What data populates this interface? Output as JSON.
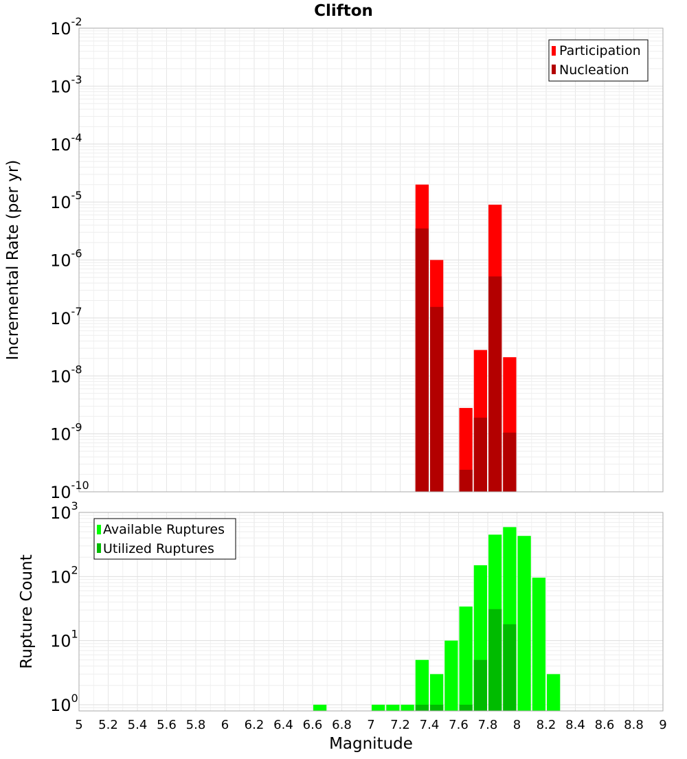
{
  "chart_data": [
    {
      "type": "bar",
      "title": "Clifton",
      "ylabel": "Incremental Rate (per yr)",
      "xlabel": "",
      "yscale": "log",
      "ylim": [
        1e-10,
        0.01
      ],
      "xlim": [
        5,
        9
      ],
      "bin_width": 0.1,
      "grid": true,
      "legend_position": "top-right",
      "y_ticks": [
        {
          "base": "10",
          "exp": "-2"
        },
        {
          "base": "10",
          "exp": "-3"
        },
        {
          "base": "10",
          "exp": "-4"
        },
        {
          "base": "10",
          "exp": "-5"
        },
        {
          "base": "10",
          "exp": "-6"
        },
        {
          "base": "10",
          "exp": "-7"
        },
        {
          "base": "10",
          "exp": "-8"
        },
        {
          "base": "10",
          "exp": "-9"
        },
        {
          "base": "10",
          "exp": "-10"
        }
      ],
      "series": [
        {
          "name": "Participation",
          "color": "#ff0000",
          "x": [
            7.35,
            7.45,
            7.65,
            7.75,
            7.85,
            7.95
          ],
          "values": [
            2e-05,
            1e-06,
            2.8e-09,
            2.8e-08,
            9e-06,
            2.1e-08
          ]
        },
        {
          "name": "Nucleation",
          "color": "#b30000",
          "x": [
            7.35,
            7.45,
            7.65,
            7.75,
            7.85,
            7.95
          ],
          "values": [
            3.5e-06,
            1.55e-07,
            2.4e-10,
            1.9e-09,
            5.2e-07,
            1.05e-09
          ]
        }
      ]
    },
    {
      "type": "bar",
      "title": "",
      "ylabel": "Rupture Count",
      "xlabel": "Magnitude",
      "yscale": "log",
      "ylim": [
        0.8,
        1000
      ],
      "xlim": [
        5,
        9
      ],
      "bin_width": 0.1,
      "grid": true,
      "legend_position": "top-left",
      "y_ticks": [
        {
          "base": "10",
          "exp": "3"
        },
        {
          "base": "10",
          "exp": "2"
        },
        {
          "base": "10",
          "exp": "1"
        },
        {
          "base": "10",
          "exp": "0"
        }
      ],
      "x_tick_labels": [
        "5",
        "5.2",
        "5.4",
        "5.6",
        "5.8",
        "6",
        "6.2",
        "6.4",
        "6.6",
        "6.8",
        "7",
        "7.2",
        "7.4",
        "7.6",
        "7.8",
        "8",
        "8.2",
        "8.4",
        "8.6",
        "8.8",
        "9"
      ],
      "series": [
        {
          "name": "Available Ruptures",
          "color": "#00ff00",
          "x": [
            6.65,
            7.05,
            7.15,
            7.25,
            7.35,
            7.45,
            7.55,
            7.65,
            7.75,
            7.85,
            7.95,
            8.05,
            8.15,
            8.25
          ],
          "values": [
            1,
            1,
            1,
            1,
            5,
            3,
            10,
            34,
            150,
            450,
            590,
            430,
            96,
            3
          ]
        },
        {
          "name": "Utilized Ruptures",
          "color": "#00bb00",
          "x": [
            7.35,
            7.45,
            7.65,
            7.75,
            7.85,
            7.95
          ],
          "values": [
            1,
            1,
            1,
            5,
            31,
            18
          ]
        }
      ]
    }
  ]
}
